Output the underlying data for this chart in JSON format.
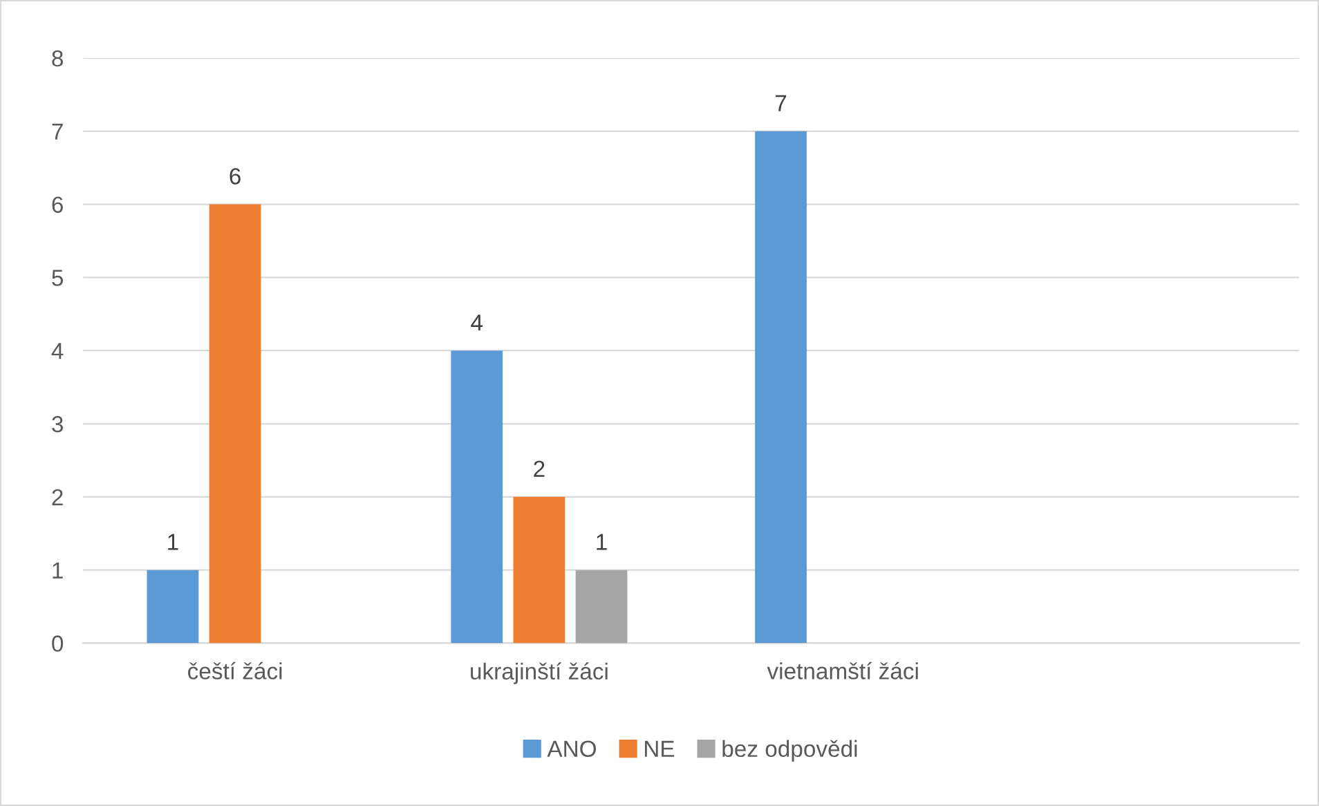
{
  "chart_data": {
    "type": "bar",
    "categories": [
      "čeští žáci",
      "ukrajinští žáci",
      "vietnamští žáci",
      null
    ],
    "series": [
      {
        "name": "ANO",
        "color": "#5b9bd5",
        "values": [
          1,
          4,
          7,
          null
        ]
      },
      {
        "name": "NE",
        "color": "#ed7d31",
        "values": [
          6,
          2,
          null,
          null
        ]
      },
      {
        "name": "bez odpovědi",
        "color": "#a5a5a5",
        "values": [
          null,
          1,
          null,
          null
        ]
      }
    ],
    "ylim": [
      0,
      8
    ],
    "yticks": [
      0,
      1,
      2,
      3,
      4,
      5,
      6,
      7,
      8
    ],
    "grid": "y",
    "legend": "bottom",
    "data_labels": true
  }
}
